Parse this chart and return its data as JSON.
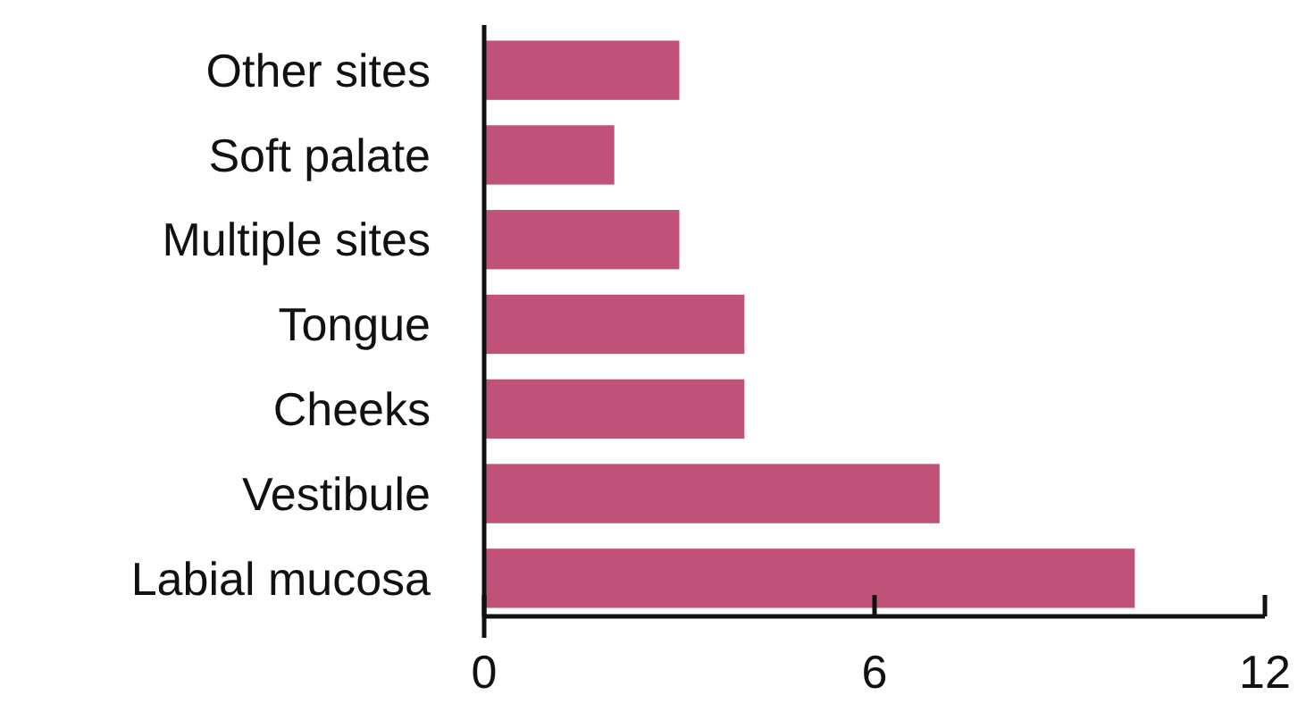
{
  "chart_data": {
    "type": "bar",
    "orientation": "horizontal",
    "categories": [
      "Other sites",
      "Soft palate",
      "Multiple sites",
      "Tongue",
      "Cheeks",
      "Vestibule",
      "Labial mucosa"
    ],
    "values": [
      3,
      2,
      3,
      4,
      4,
      7,
      10
    ],
    "color": "#c0527a",
    "xlim": [
      0,
      12
    ],
    "xticks": [
      0,
      6,
      12
    ]
  }
}
